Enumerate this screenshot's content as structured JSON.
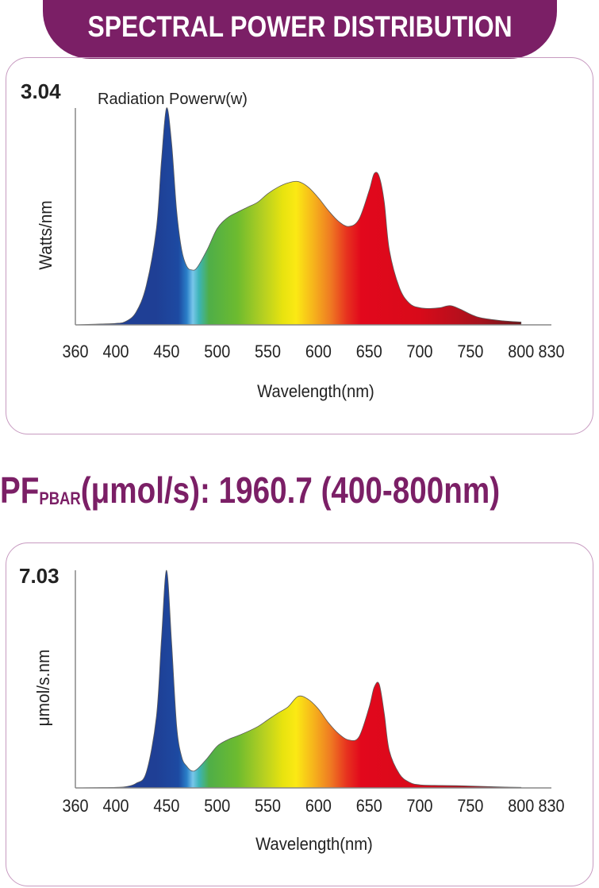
{
  "header": {
    "title": "SPECTRAL POWER DISTRIBUTION"
  },
  "pf": {
    "prefix": "PF",
    "subscript": "PBAR",
    "rest": "(μmol/s): 1960.7 (400-800nm)"
  },
  "colors": {
    "brand": "#7b1f66",
    "panel_border": "#c79ac0"
  },
  "chart_data": [
    {
      "type": "area",
      "series_label": "Radiation Powerw(w)",
      "ylabel": "Watts/nm",
      "xlabel": "Wavelength(nm)",
      "ymax_label": "3.04",
      "ylim": [
        0,
        3.04
      ],
      "xlim": [
        360,
        830
      ],
      "xticks": [
        "360",
        "400",
        "450",
        "500",
        "550",
        "600",
        "650",
        "700",
        "750",
        "800",
        "830"
      ],
      "x": [
        360,
        380,
        400,
        410,
        420,
        430,
        440,
        445,
        450,
        455,
        460,
        465,
        470,
        475,
        480,
        490,
        500,
        510,
        520,
        530,
        540,
        550,
        560,
        570,
        580,
        590,
        600,
        610,
        620,
        630,
        640,
        650,
        655,
        660,
        665,
        670,
        680,
        690,
        700,
        710,
        720,
        730,
        740,
        750,
        760,
        780,
        800
      ],
      "values": [
        0.0,
        0.01,
        0.02,
        0.05,
        0.18,
        0.55,
        1.35,
        2.3,
        3.04,
        2.55,
        1.6,
        1.05,
        0.82,
        0.77,
        0.8,
        1.05,
        1.35,
        1.5,
        1.58,
        1.65,
        1.72,
        1.84,
        1.93,
        1.99,
        2.01,
        1.93,
        1.78,
        1.6,
        1.45,
        1.38,
        1.48,
        1.88,
        2.12,
        2.08,
        1.72,
        1.05,
        0.52,
        0.3,
        0.24,
        0.23,
        0.24,
        0.27,
        0.22,
        0.15,
        0.1,
        0.06,
        0.04
      ]
    },
    {
      "type": "area",
      "ylabel": "μmol/s.nm",
      "xlabel": "Wavelength(nm)",
      "ymax_label": "7.03",
      "ylim": [
        0,
        7.03
      ],
      "xlim": [
        360,
        830
      ],
      "xticks": [
        "360",
        "400",
        "450",
        "500",
        "550",
        "600",
        "650",
        "700",
        "750",
        "800",
        "830"
      ],
      "x": [
        360,
        380,
        400,
        410,
        420,
        430,
        440,
        445,
        450,
        455,
        460,
        465,
        470,
        475,
        480,
        490,
        500,
        510,
        520,
        530,
        540,
        550,
        560,
        570,
        580,
        590,
        600,
        610,
        620,
        630,
        640,
        650,
        655,
        660,
        665,
        670,
        680,
        690,
        700,
        720,
        740,
        760,
        780,
        800
      ],
      "values": [
        0.0,
        0.01,
        0.02,
        0.04,
        0.15,
        0.5,
        2.3,
        4.8,
        7.03,
        4.7,
        2.0,
        1.0,
        0.7,
        0.55,
        0.6,
        0.95,
        1.35,
        1.55,
        1.68,
        1.82,
        1.98,
        2.2,
        2.42,
        2.62,
        2.96,
        2.86,
        2.55,
        2.1,
        1.75,
        1.55,
        1.65,
        2.6,
        3.25,
        3.35,
        2.4,
        1.2,
        0.45,
        0.18,
        0.1,
        0.08,
        0.07,
        0.05,
        0.03,
        0.02
      ]
    }
  ]
}
